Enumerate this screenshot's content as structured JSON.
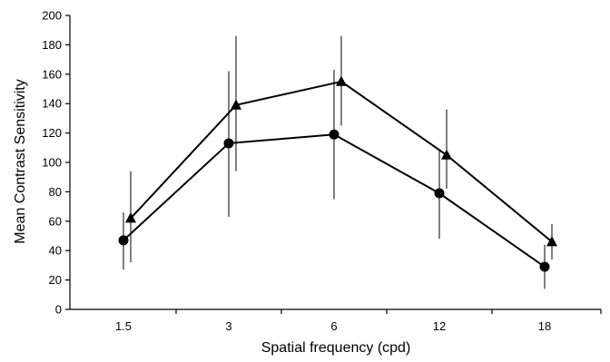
{
  "chart_data": {
    "type": "line",
    "title": "",
    "xlabel": "Spatial frequency (cpd)",
    "ylabel": "Mean Contrast Sensitivity",
    "categories": [
      "1.5",
      "3",
      "6",
      "12",
      "18"
    ],
    "ylim": [
      0,
      200
    ],
    "yticks": [
      "0",
      "20",
      "40",
      "60",
      "80",
      "100",
      "120",
      "140",
      "160",
      "180",
      "200"
    ],
    "grid": false,
    "legend": "none",
    "series": [
      {
        "marker": "circle",
        "color": "#000000",
        "values": [
          47,
          113,
          119,
          79,
          29
        ],
        "err_low": [
          27,
          63,
          75,
          48,
          14
        ],
        "err_high": [
          66,
          162,
          163,
          108,
          44
        ]
      },
      {
        "marker": "triangle",
        "color": "#000000",
        "values": [
          62,
          139,
          155,
          105,
          46
        ],
        "err_low": [
          32,
          94,
          125,
          82,
          34
        ],
        "err_high": [
          94,
          186,
          186,
          136,
          58
        ]
      }
    ]
  }
}
